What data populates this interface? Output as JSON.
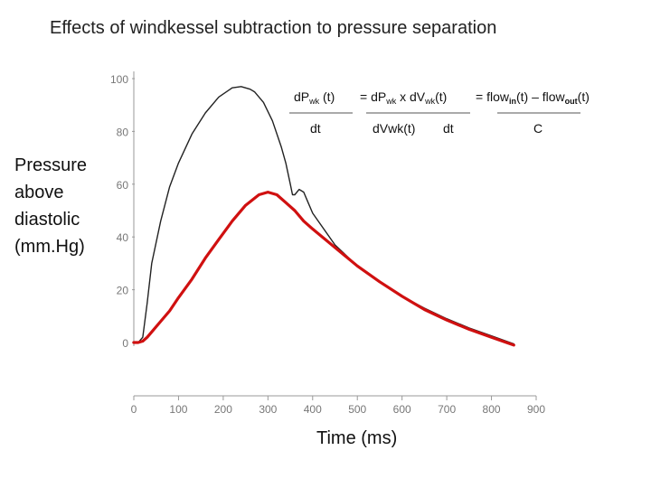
{
  "chart_data": {
    "type": "line",
    "title": "Effects of windkessel subtraction to pressure separation",
    "ylabel": [
      "Pressure",
      "above",
      "diastolic",
      "(mm.Hg)"
    ],
    "xlabel": "Time (ms)",
    "xlim": [
      0,
      900
    ],
    "ylim": [
      0,
      100
    ],
    "xticks": [
      "0",
      "100",
      "200",
      "300",
      "400",
      "500",
      "600",
      "700",
      "800",
      "900"
    ],
    "yticks": [
      "0",
      "20",
      "40",
      "60",
      "80",
      "100"
    ],
    "grid": false,
    "series": [
      {
        "color": "#222222",
        "x": [
          0,
          10,
          20,
          30,
          40,
          60,
          80,
          100,
          130,
          160,
          190,
          220,
          240,
          260,
          270,
          290,
          310,
          330,
          340,
          350,
          355,
          360,
          370,
          380,
          390,
          400,
          450,
          500,
          550,
          600,
          650,
          700,
          750,
          800,
          850
        ],
        "y": [
          0,
          0,
          2,
          15,
          30,
          46,
          59,
          68,
          79,
          87,
          93,
          96.5,
          97,
          96,
          95,
          91,
          84,
          74,
          68,
          60,
          56,
          56,
          58,
          57,
          53,
          49,
          37,
          29,
          23,
          17.5,
          13,
          9,
          5.5,
          2.5,
          -0.5
        ]
      },
      {
        "color": "#d01010",
        "x": [
          0,
          10,
          20,
          30,
          40,
          60,
          80,
          100,
          130,
          160,
          190,
          220,
          250,
          280,
          300,
          320,
          340,
          360,
          380,
          400,
          450,
          500,
          550,
          600,
          650,
          700,
          750,
          800,
          850
        ],
        "y": [
          0,
          0,
          0.5,
          2,
          4,
          8,
          12,
          17,
          24,
          32,
          39,
          46,
          52,
          56,
          57,
          56,
          53,
          50,
          46,
          43,
          36,
          29,
          23,
          17.5,
          12.5,
          8.5,
          5,
          2,
          -1
        ]
      }
    ]
  },
  "equation": {
    "lhs_num_d": "dP",
    "lhs_num_sub": "wk",
    "lhs_num_t": " (t)",
    "lhs_den": "dt",
    "eq_mid_a": "= dP",
    "eq_mid_a_sub": "wk",
    "eq_mid_b": " x dV",
    "eq_mid_b_sub": "wk",
    "eq_mid_c": "(t)",
    "mid_den": "dVwk(t)",
    "mid_den2": "dt",
    "rhs_a": "= flow",
    "rhs_a_sub": "in",
    "rhs_b": "(t) – flow",
    "rhs_b_sub": "out",
    "rhs_c": "(t)",
    "rhs_den": "C"
  }
}
